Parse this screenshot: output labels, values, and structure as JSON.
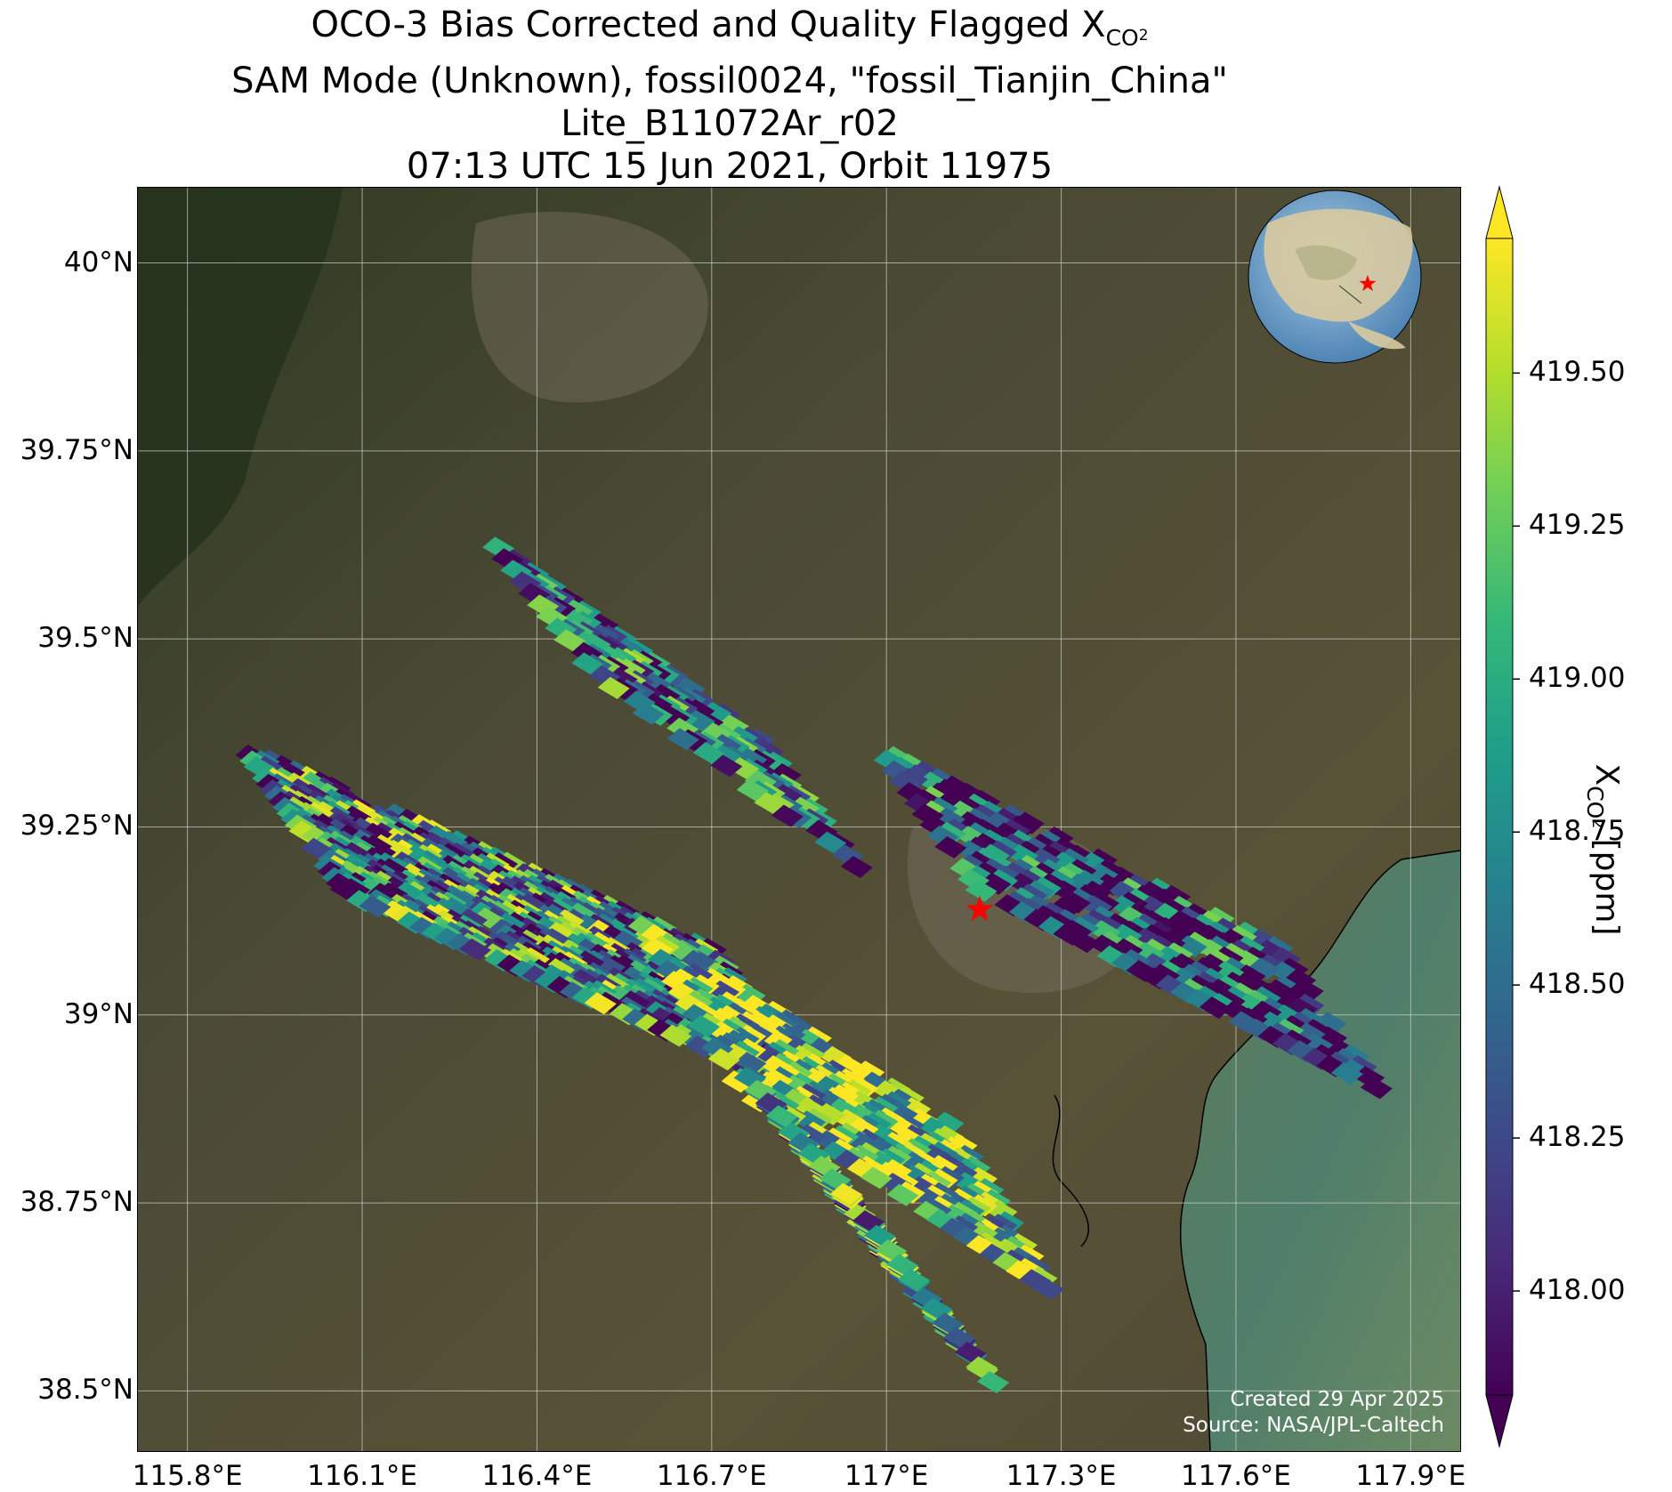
{
  "title": {
    "line1_prefix": "OCO-3 Bias Corrected and Quality Flagged X",
    "line1_sub": "CO",
    "line1_sub2": "2",
    "line2": "SAM Mode (Unknown), fossil0024, \"fossil_Tianjin_China\"",
    "line3": "Lite_B11072Ar_r02",
    "line4": "07:13 UTC 15 Jun 2021, Orbit 11975"
  },
  "map": {
    "lon_range": [
      115.715,
      117.985
    ],
    "lat_range": [
      38.42,
      40.1
    ],
    "target_lon": 117.16,
    "target_lat": 39.14,
    "overlay_color": "#ff0000"
  },
  "axes": {
    "x_ticks": [
      {
        "value": 115.8,
        "label": "115.8°E"
      },
      {
        "value": 116.1,
        "label": "116.1°E"
      },
      {
        "value": 116.4,
        "label": "116.4°E"
      },
      {
        "value": 116.7,
        "label": "116.7°E"
      },
      {
        "value": 117.0,
        "label": "117°E"
      },
      {
        "value": 117.3,
        "label": "117.3°E"
      },
      {
        "value": 117.6,
        "label": "117.6°E"
      },
      {
        "value": 117.9,
        "label": "117.9°E"
      }
    ],
    "y_ticks": [
      {
        "value": 40.0,
        "label": "40°N"
      },
      {
        "value": 39.75,
        "label": "39.75°N"
      },
      {
        "value": 39.5,
        "label": "39.5°N"
      },
      {
        "value": 39.25,
        "label": "39.25°N"
      },
      {
        "value": 39.0,
        "label": "39°N"
      },
      {
        "value": 38.75,
        "label": "38.75°N"
      },
      {
        "value": 38.5,
        "label": "38.5°N"
      }
    ]
  },
  "colorbar": {
    "min": 417.83,
    "max": 419.72,
    "label_prefix": "X",
    "label_sub": "CO",
    "label_sub2": "2",
    "label_suffix": " [ppm]",
    "ticks": [
      {
        "value": 418.0,
        "label": "418.00"
      },
      {
        "value": 418.25,
        "label": "418.25"
      },
      {
        "value": 418.5,
        "label": "418.50"
      },
      {
        "value": 418.75,
        "label": "418.75"
      },
      {
        "value": 419.0,
        "label": "419.00"
      },
      {
        "value": 419.25,
        "label": "419.25"
      },
      {
        "value": 419.5,
        "label": "419.50"
      }
    ],
    "colormap": [
      "#440154",
      "#482878",
      "#3e4989",
      "#31688e",
      "#26828e",
      "#1f9e89",
      "#35b779",
      "#6ece58",
      "#b5de2b",
      "#fde725"
    ]
  },
  "credits": {
    "line1": "Created 29 Apr 2025",
    "line2": "Source: NASA/JPL-Caltech"
  }
}
